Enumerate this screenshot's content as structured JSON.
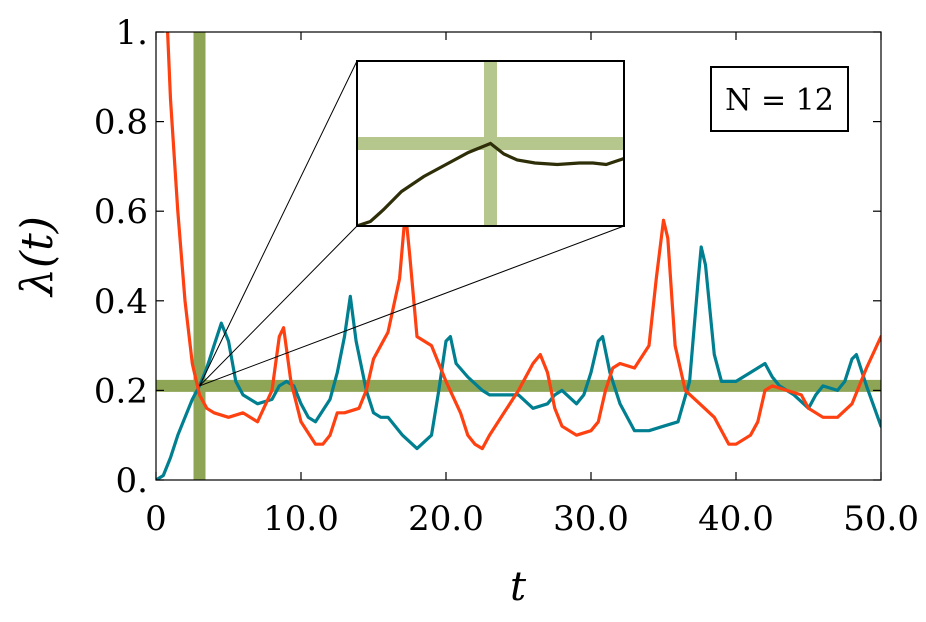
{
  "chart_data": {
    "type": "line",
    "xlabel": "t",
    "ylabel": "λ(t)",
    "xlim": [
      0,
      50
    ],
    "ylim": [
      0,
      1
    ],
    "x_ticks": [
      {
        "value": 0,
        "label": "0"
      },
      {
        "value": 10,
        "label": "10.0"
      },
      {
        "value": 20,
        "label": "20.0"
      },
      {
        "value": 30,
        "label": "30.0"
      },
      {
        "value": 40,
        "label": "40.0"
      },
      {
        "value": 50,
        "label": "50.0"
      }
    ],
    "y_ticks": [
      {
        "value": 0,
        "label": "0."
      },
      {
        "value": 0.2,
        "label": "0.2"
      },
      {
        "value": 0.4,
        "label": "0.4"
      },
      {
        "value": 0.6,
        "label": "0.6"
      },
      {
        "value": 0.8,
        "label": "0.8"
      },
      {
        "value": 1,
        "label": "1."
      }
    ],
    "grid": false,
    "annotation_box": {
      "label": "N = 12",
      "placement": "top-right"
    },
    "crosshair": {
      "x": 3.0,
      "y": 0.21,
      "color": "#8ea556"
    },
    "series": [
      {
        "color": "#007f91",
        "points": [
          [
            0,
            0
          ],
          [
            0.5,
            0.01
          ],
          [
            1,
            0.05
          ],
          [
            1.5,
            0.1
          ],
          [
            2,
            0.14
          ],
          [
            2.5,
            0.18
          ],
          [
            3,
            0.21
          ],
          [
            3.5,
            0.25
          ],
          [
            4,
            0.3
          ],
          [
            4.5,
            0.35
          ],
          [
            5,
            0.31
          ],
          [
            5.5,
            0.22
          ],
          [
            6,
            0.19
          ],
          [
            7,
            0.17
          ],
          [
            8,
            0.18
          ],
          [
            8.5,
            0.21
          ],
          [
            9,
            0.22
          ],
          [
            9.5,
            0.21
          ],
          [
            10,
            0.17
          ],
          [
            10.5,
            0.14
          ],
          [
            11,
            0.13
          ],
          [
            12,
            0.18
          ],
          [
            12.5,
            0.24
          ],
          [
            13,
            0.32
          ],
          [
            13.4,
            0.41
          ],
          [
            13.8,
            0.31
          ],
          [
            14.5,
            0.2
          ],
          [
            15,
            0.15
          ],
          [
            15.5,
            0.14
          ],
          [
            16,
            0.14
          ],
          [
            17,
            0.1
          ],
          [
            18,
            0.07
          ],
          [
            19,
            0.1
          ],
          [
            19.5,
            0.2
          ],
          [
            20,
            0.31
          ],
          [
            20.3,
            0.32
          ],
          [
            20.7,
            0.26
          ],
          [
            21.5,
            0.23
          ],
          [
            22.5,
            0.2
          ],
          [
            23,
            0.19
          ],
          [
            24,
            0.19
          ],
          [
            25,
            0.19
          ],
          [
            26,
            0.16
          ],
          [
            27,
            0.17
          ],
          [
            27.5,
            0.19
          ],
          [
            28,
            0.2
          ],
          [
            29,
            0.17
          ],
          [
            29.5,
            0.19
          ],
          [
            30,
            0.24
          ],
          [
            30.5,
            0.31
          ],
          [
            30.8,
            0.32
          ],
          [
            31.3,
            0.24
          ],
          [
            32,
            0.17
          ],
          [
            33,
            0.11
          ],
          [
            34,
            0.11
          ],
          [
            35,
            0.12
          ],
          [
            36,
            0.13
          ],
          [
            36.8,
            0.22
          ],
          [
            37.4,
            0.45
          ],
          [
            37.6,
            0.52
          ],
          [
            37.9,
            0.48
          ],
          [
            38.5,
            0.28
          ],
          [
            39,
            0.22
          ],
          [
            40,
            0.22
          ],
          [
            41,
            0.24
          ],
          [
            42,
            0.26
          ],
          [
            42.5,
            0.23
          ],
          [
            43,
            0.21
          ],
          [
            44,
            0.19
          ],
          [
            45,
            0.16
          ],
          [
            45.5,
            0.19
          ],
          [
            46,
            0.21
          ],
          [
            47,
            0.2
          ],
          [
            47.5,
            0.22
          ],
          [
            48,
            0.27
          ],
          [
            48.3,
            0.28
          ],
          [
            49,
            0.21
          ],
          [
            50,
            0.12
          ]
        ]
      },
      {
        "color": "#ff4010",
        "points": [
          [
            0.8,
            1.0
          ],
          [
            1,
            0.85
          ],
          [
            1.5,
            0.6
          ],
          [
            2,
            0.4
          ],
          [
            2.5,
            0.26
          ],
          [
            3,
            0.19
          ],
          [
            3.5,
            0.16
          ],
          [
            4,
            0.15
          ],
          [
            5,
            0.14
          ],
          [
            6,
            0.15
          ],
          [
            7,
            0.13
          ],
          [
            8,
            0.2
          ],
          [
            8.5,
            0.32
          ],
          [
            8.8,
            0.34
          ],
          [
            9.3,
            0.22
          ],
          [
            10,
            0.13
          ],
          [
            11,
            0.08
          ],
          [
            11.5,
            0.08
          ],
          [
            12,
            0.1
          ],
          [
            12.5,
            0.15
          ],
          [
            13,
            0.15
          ],
          [
            14,
            0.16
          ],
          [
            14.5,
            0.2
          ],
          [
            15,
            0.27
          ],
          [
            16,
            0.33
          ],
          [
            16.8,
            0.45
          ],
          [
            17.2,
            0.6
          ],
          [
            17.5,
            0.5
          ],
          [
            18,
            0.32
          ],
          [
            19,
            0.3
          ],
          [
            20,
            0.22
          ],
          [
            21,
            0.15
          ],
          [
            21.5,
            0.1
          ],
          [
            22,
            0.08
          ],
          [
            22.5,
            0.07
          ],
          [
            23,
            0.1
          ],
          [
            24,
            0.15
          ],
          [
            25,
            0.2
          ],
          [
            26,
            0.26
          ],
          [
            26.5,
            0.28
          ],
          [
            27,
            0.24
          ],
          [
            27.5,
            0.16
          ],
          [
            28,
            0.12
          ],
          [
            29,
            0.1
          ],
          [
            30,
            0.11
          ],
          [
            30.5,
            0.13
          ],
          [
            31,
            0.2
          ],
          [
            31.5,
            0.25
          ],
          [
            32,
            0.26
          ],
          [
            33,
            0.25
          ],
          [
            34,
            0.3
          ],
          [
            34.5,
            0.45
          ],
          [
            35,
            0.58
          ],
          [
            35.3,
            0.54
          ],
          [
            35.8,
            0.3
          ],
          [
            36.5,
            0.2
          ],
          [
            37.5,
            0.17
          ],
          [
            38.5,
            0.14
          ],
          [
            39.5,
            0.08
          ],
          [
            40,
            0.08
          ],
          [
            41,
            0.1
          ],
          [
            41.5,
            0.13
          ],
          [
            42,
            0.2
          ],
          [
            42.5,
            0.21
          ],
          [
            43.5,
            0.2
          ],
          [
            44.5,
            0.19
          ],
          [
            45,
            0.16
          ],
          [
            46,
            0.14
          ],
          [
            47,
            0.14
          ],
          [
            48,
            0.17
          ],
          [
            49,
            0.25
          ],
          [
            50,
            0.32
          ]
        ]
      }
    ],
    "inset": {
      "placement": "top-center",
      "xlim": [
        0.0,
        6.0
      ],
      "ylim": [
        0.155,
        0.265
      ],
      "crosshair": {
        "x": 3.0,
        "y": 0.21
      },
      "line_color": "#2e2e08",
      "points": [
        [
          0,
          0.155
        ],
        [
          0.3,
          0.158
        ],
        [
          0.6,
          0.166
        ],
        [
          1,
          0.178
        ],
        [
          1.5,
          0.188
        ],
        [
          2,
          0.196
        ],
        [
          2.5,
          0.204
        ],
        [
          3,
          0.21
        ],
        [
          3.3,
          0.203
        ],
        [
          3.6,
          0.199
        ],
        [
          4,
          0.197
        ],
        [
          4.5,
          0.196
        ],
        [
          5,
          0.197
        ],
        [
          5.3,
          0.197
        ],
        [
          5.6,
          0.196
        ],
        [
          5.8,
          0.198
        ],
        [
          6,
          0.2
        ]
      ]
    }
  }
}
